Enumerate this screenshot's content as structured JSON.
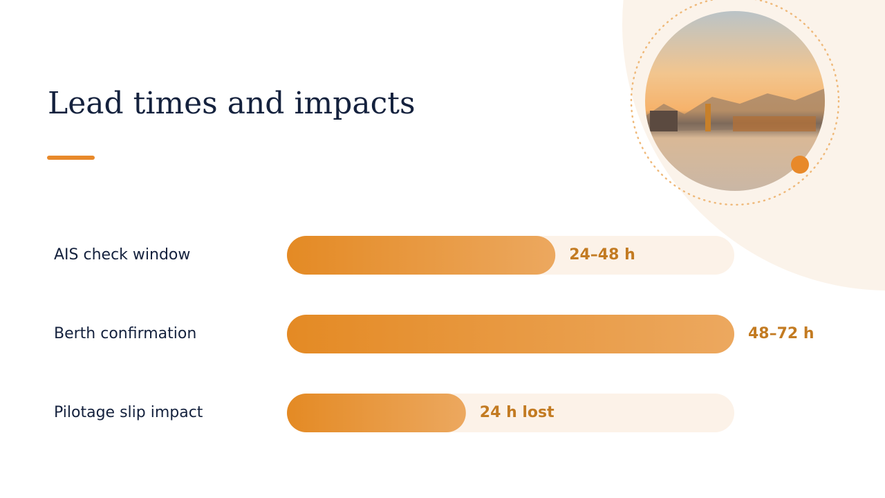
{
  "chart_data": {
    "type": "bar",
    "orientation": "horizontal",
    "title": "Lead times and impacts",
    "categories": [
      "AIS check window",
      "Berth confirmation",
      "Pilotage slip impact"
    ],
    "values": [
      60,
      100,
      40
    ],
    "labels": [
      "24–48 h",
      "48–72 h",
      "24 h lost"
    ],
    "xlim": [
      0,
      100
    ],
    "color": "#e58e2a"
  }
}
